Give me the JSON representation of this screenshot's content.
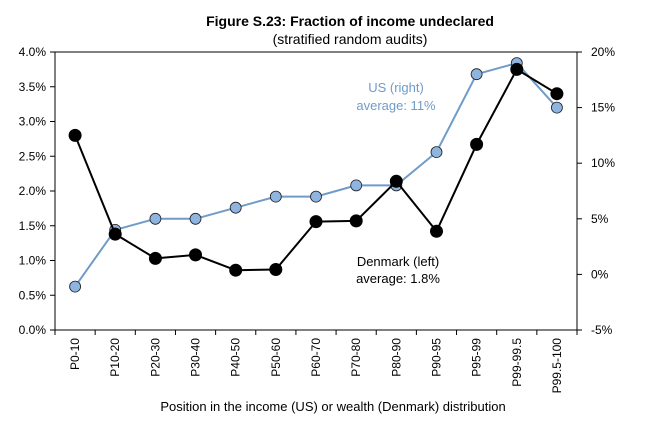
{
  "chart_data": {
    "type": "line",
    "title": "Figure S.23: Fraction of income undeclared",
    "subtitle": "(stratified random audits)",
    "xlabel": "Position in the income (US) or wealth (Denmark) distribution",
    "categories": [
      "P0-10",
      "P10-20",
      "P20-30",
      "P30-40",
      "P40-50",
      "P50-60",
      "P60-70",
      "P70-80",
      "P80-90",
      "P90-95",
      "P95-99",
      "P99-99.5",
      "P99.5-100"
    ],
    "left_axis": {
      "ylim": [
        0,
        4
      ],
      "ticks": [
        0,
        0.5,
        1,
        1.5,
        2,
        2.5,
        3,
        3.5,
        4
      ],
      "tick_labels": [
        "0.0%",
        "0.5%",
        "1.0%",
        "1.5%",
        "2.0%",
        "2.5%",
        "3.0%",
        "3.5%",
        "4.0%"
      ]
    },
    "right_axis": {
      "ylim": [
        -5,
        20
      ],
      "ticks": [
        -5,
        0,
        5,
        10,
        15,
        20
      ],
      "tick_labels": [
        "-5%",
        "0%",
        "5%",
        "10%",
        "15%",
        "20%"
      ]
    },
    "series": [
      {
        "axis": "left",
        "color": "#000000",
        "marker_fill": "#000000",
        "values": [
          2.8,
          1.38,
          1.03,
          1.08,
          0.86,
          0.87,
          1.56,
          1.57,
          2.14,
          1.42,
          2.67,
          3.75,
          3.4
        ]
      },
      {
        "axis": "right",
        "color": "#6f9bc9",
        "marker_fill": "#8fb4df",
        "values": [
          -1.1,
          4.0,
          5.0,
          5.0,
          6.0,
          7.0,
          7.0,
          8.0,
          8.0,
          11.0,
          18.0,
          19.0,
          15.0
        ]
      }
    ],
    "annotations": [
      {
        "text": "US (right)",
        "color": "#6f9bc9"
      },
      {
        "text": "average: 11%",
        "color": "#6f9bc9"
      },
      {
        "text": "Denmark (left)",
        "color": "#000000"
      },
      {
        "text": "average: 1.8%",
        "color": "#000000"
      }
    ],
    "grid": false,
    "legend": "none"
  }
}
